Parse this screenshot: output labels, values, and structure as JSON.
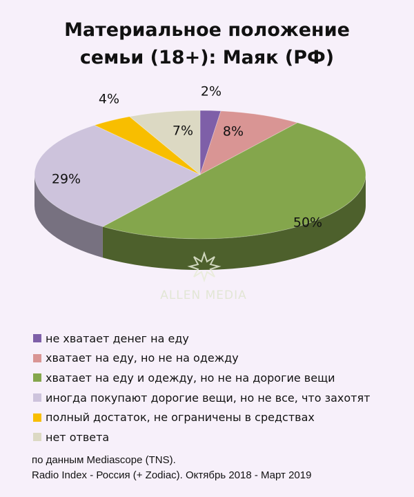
{
  "chart_data": {
    "type": "pie",
    "title_line1": "Материальное положение",
    "title_line2": "семьи (18+): Маяк (РФ)",
    "slices": [
      {
        "label": "не хватает денег на еду",
        "value": 2,
        "display": "2%",
        "color": "#7e5fa8"
      },
      {
        "label": "хватает на еду, но не на одежду",
        "value": 8,
        "display": "8%",
        "color": "#d99594"
      },
      {
        "label": "хватает на еду и одежду, но не на дорогие вещи",
        "value": 50,
        "display": "50%",
        "color": "#84a64c"
      },
      {
        "label": "иногда покупают дорогие вещи, но не все, что захотят",
        "value": 29,
        "display": "29%",
        "color": "#cdc3dc"
      },
      {
        "label": "полный достаток, не ограничены в средствах",
        "value": 4,
        "display": "4%",
        "color": "#f8be00"
      },
      {
        "label": "нет ответа",
        "value": 7,
        "display": "7%",
        "color": "#dcd9c3"
      }
    ]
  },
  "watermark": "ALLEN MEDIA",
  "source": {
    "line1": "по данным Mediascope (TNS).",
    "line2": "Radio Index - Россия (+ Zodiac). Октябрь 2018 - Март 2019"
  }
}
